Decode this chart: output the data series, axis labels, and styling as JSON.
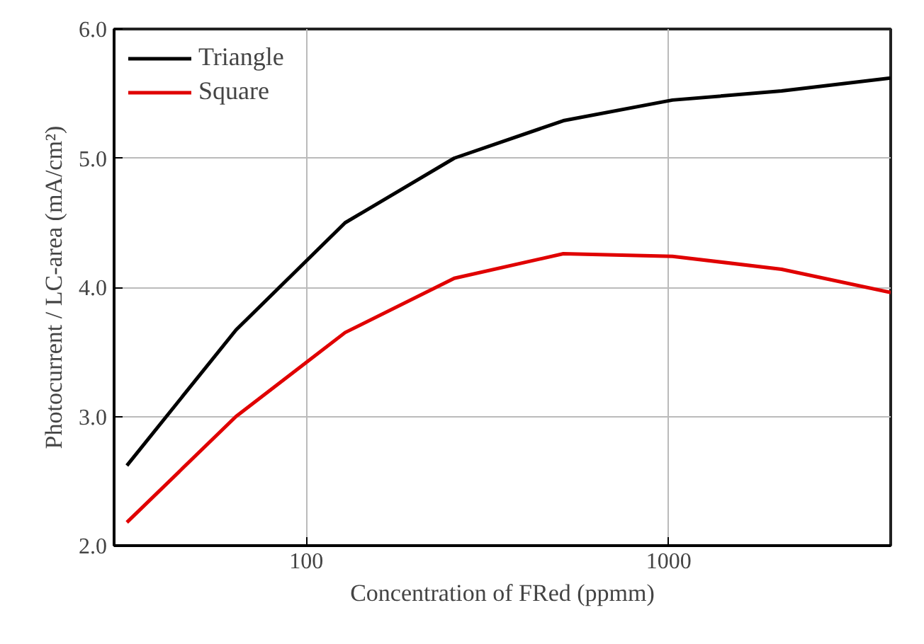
{
  "chart_data": {
    "type": "line",
    "xlabel": "Concentration of FRed (ppmm)",
    "ylabel": "Photocurrent / LC-area (mA/cm²)",
    "x": [
      32,
      64,
      128,
      256,
      512,
      1024,
      2048,
      4096
    ],
    "series": [
      {
        "name": "Triangle",
        "color": "#000000",
        "values": [
          2.62,
          3.67,
          4.5,
          5.0,
          5.29,
          5.45,
          5.52,
          5.62
        ]
      },
      {
        "name": "Square",
        "color": "#e00000",
        "values": [
          2.18,
          3.0,
          3.65,
          4.07,
          4.26,
          4.24,
          4.14,
          3.96
        ]
      }
    ],
    "log": "x",
    "xlim": [
      29.5,
      4096
    ],
    "xticks": [
      100,
      1000
    ],
    "ylim": [
      2.0,
      6.0
    ],
    "yticks": [
      {
        "value": 2,
        "label": "2.0"
      },
      {
        "value": 3,
        "label": "3.0"
      },
      {
        "value": 4,
        "label": "4.0"
      },
      {
        "value": 5,
        "label": "5.0"
      },
      {
        "value": 6,
        "label": "6.0"
      }
    ],
    "grid": true,
    "legend": "top left",
    "line_style": "solid",
    "marker": "none"
  }
}
